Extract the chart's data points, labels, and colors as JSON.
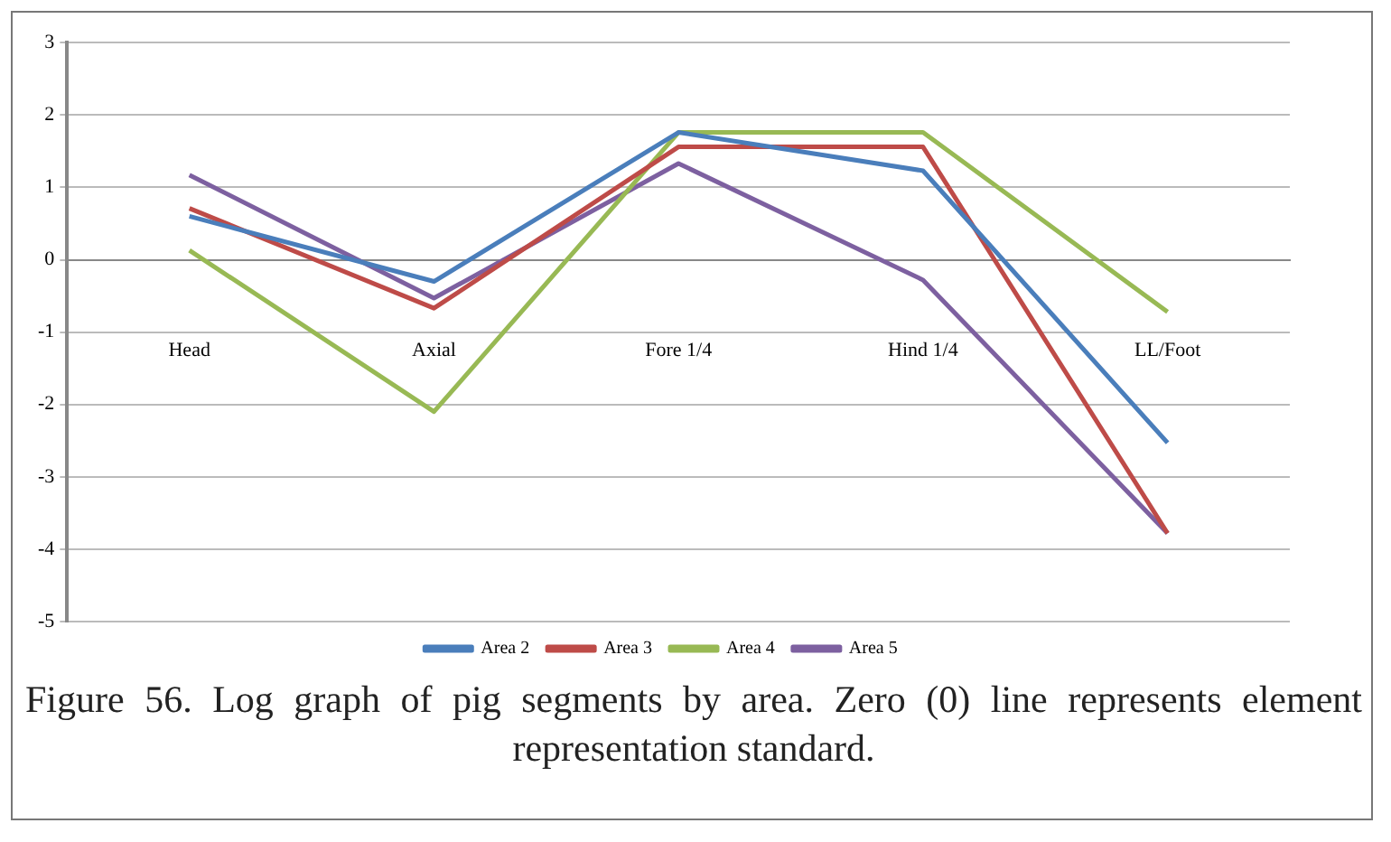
{
  "chart_data": {
    "type": "line",
    "categories": [
      "Head",
      "Axial",
      "Fore 1/4",
      "Hind 1/4",
      "LL/Foot"
    ],
    "series": [
      {
        "name": "Area 2",
        "color": "#4a7ebb",
        "values": [
          0.6,
          -0.3,
          1.76,
          1.23,
          -2.53
        ]
      },
      {
        "name": "Area 3",
        "color": "#be4b48",
        "values": [
          0.71,
          -0.67,
          1.56,
          1.56,
          -3.78
        ]
      },
      {
        "name": "Area 4",
        "color": "#98b954",
        "values": [
          0.13,
          -2.1,
          1.76,
          1.76,
          -0.72
        ]
      },
      {
        "name": "Area 5",
        "color": "#7d60a0",
        "values": [
          1.17,
          -0.53,
          1.33,
          -0.28,
          -3.78
        ]
      }
    ],
    "ylim": [
      -5,
      3
    ],
    "yticks": [
      -5,
      -4,
      -3,
      -2,
      -1,
      0,
      1,
      2,
      3
    ],
    "grid": "y",
    "legend": "bottom",
    "marker": "none",
    "annotations": [
      "Figure 56. Log graph of pig segments by area. Zero (0) line represents element representation standard."
    ]
  }
}
